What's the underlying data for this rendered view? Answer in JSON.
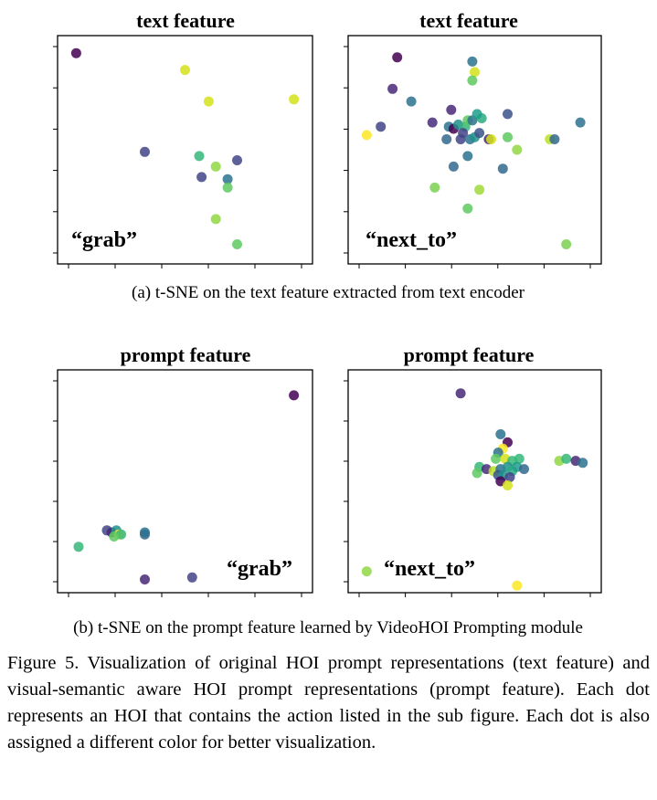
{
  "chart_data": [
    {
      "type": "scatter",
      "id": "text-grab",
      "title": "text feature",
      "label": "“grab”",
      "xlim": [
        0,
        100
      ],
      "ylim": [
        0,
        100
      ],
      "points": [
        {
          "x": 4,
          "y": 96,
          "c": "#440154"
        },
        {
          "x": 50,
          "y": 88,
          "c": "#d5e21a"
        },
        {
          "x": 60,
          "y": 73,
          "c": "#d5e21a"
        },
        {
          "x": 96,
          "y": 74,
          "c": "#d5e21a"
        },
        {
          "x": 33,
          "y": 49,
          "c": "#414487"
        },
        {
          "x": 56,
          "y": 47,
          "c": "#35b779"
        },
        {
          "x": 63,
          "y": 42,
          "c": "#90d743"
        },
        {
          "x": 72,
          "y": 45,
          "c": "#414487"
        },
        {
          "x": 57,
          "y": 37,
          "c": "#414487"
        },
        {
          "x": 68,
          "y": 36,
          "c": "#2c728e"
        },
        {
          "x": 68,
          "y": 32,
          "c": "#5ec962"
        },
        {
          "x": 63,
          "y": 17,
          "c": "#90d743"
        },
        {
          "x": 72,
          "y": 5,
          "c": "#5ec962"
        }
      ]
    },
    {
      "type": "scatter",
      "id": "text-next-to",
      "title": "text feature",
      "label": "“next_to”",
      "xlim": [
        0,
        100
      ],
      "ylim": [
        0,
        100
      ],
      "points": [
        {
          "x": 17,
          "y": 94,
          "c": "#440154"
        },
        {
          "x": 15,
          "y": 79,
          "c": "#482878"
        },
        {
          "x": 49,
          "y": 92,
          "c": "#2c728e"
        },
        {
          "x": 50,
          "y": 87,
          "c": "#d5e21a"
        },
        {
          "x": 49,
          "y": 83,
          "c": "#5ec962"
        },
        {
          "x": 23,
          "y": 73,
          "c": "#2c728e"
        },
        {
          "x": 40,
          "y": 69,
          "c": "#482878"
        },
        {
          "x": 10,
          "y": 61,
          "c": "#414487"
        },
        {
          "x": 32,
          "y": 63,
          "c": "#472c7a"
        },
        {
          "x": 39,
          "y": 61,
          "c": "#2c728e"
        },
        {
          "x": 41,
          "y": 60,
          "c": "#440154"
        },
        {
          "x": 43,
          "y": 62,
          "c": "#21918c"
        },
        {
          "x": 46,
          "y": 61,
          "c": "#35b779"
        },
        {
          "x": 47,
          "y": 64,
          "c": "#5ec962"
        },
        {
          "x": 49,
          "y": 64,
          "c": "#2c728e"
        },
        {
          "x": 53,
          "y": 65,
          "c": "#28ae80"
        },
        {
          "x": 51,
          "y": 67,
          "c": "#1f9e89"
        },
        {
          "x": 64,
          "y": 67,
          "c": "#3b528b"
        },
        {
          "x": 45,
          "y": 58,
          "c": "#414487"
        },
        {
          "x": 44,
          "y": 55,
          "c": "#414487"
        },
        {
          "x": 38,
          "y": 55,
          "c": "#31688e"
        },
        {
          "x": 48,
          "y": 55,
          "c": "#2c728e"
        },
        {
          "x": 50,
          "y": 56,
          "c": "#21918c"
        },
        {
          "x": 52,
          "y": 58,
          "c": "#3b528b"
        },
        {
          "x": 56,
          "y": 55,
          "c": "#482878"
        },
        {
          "x": 57,
          "y": 55,
          "c": "#d5e21a"
        },
        {
          "x": 64,
          "y": 56,
          "c": "#5ec962"
        },
        {
          "x": 4,
          "y": 57,
          "c": "#fde725"
        },
        {
          "x": 47,
          "y": 47,
          "c": "#2c728e"
        },
        {
          "x": 68,
          "y": 50,
          "c": "#90d743"
        },
        {
          "x": 41,
          "y": 42,
          "c": "#31688e"
        },
        {
          "x": 62,
          "y": 41,
          "c": "#31688e"
        },
        {
          "x": 82,
          "y": 55,
          "c": "#bddf26"
        },
        {
          "x": 84,
          "y": 55,
          "c": "#31688e"
        },
        {
          "x": 95,
          "y": 63,
          "c": "#2c728e"
        },
        {
          "x": 33,
          "y": 32,
          "c": "#7ad151"
        },
        {
          "x": 52,
          "y": 31,
          "c": "#a0da39"
        },
        {
          "x": 47,
          "y": 22,
          "c": "#5ec962"
        },
        {
          "x": 89,
          "y": 5,
          "c": "#7ad151"
        }
      ]
    },
    {
      "type": "scatter",
      "id": "prompt-grab",
      "title": "prompt feature",
      "label": "“grab”",
      "xlim": [
        0,
        100
      ],
      "ylim": [
        0,
        100
      ],
      "points": [
        {
          "x": 96,
          "y": 92,
          "c": "#440154"
        },
        {
          "x": 17,
          "y": 26,
          "c": "#414487"
        },
        {
          "x": 19,
          "y": 25,
          "c": "#482878"
        },
        {
          "x": 21,
          "y": 26,
          "c": "#21918c"
        },
        {
          "x": 22,
          "y": 24,
          "c": "#fde725"
        },
        {
          "x": 23,
          "y": 24,
          "c": "#35b779"
        },
        {
          "x": 20,
          "y": 23,
          "c": "#5ec962"
        },
        {
          "x": 33,
          "y": 24,
          "c": "#31688e"
        },
        {
          "x": 33,
          "y": 25,
          "c": "#2c728e"
        },
        {
          "x": 5,
          "y": 18,
          "c": "#35b779"
        },
        {
          "x": 33,
          "y": 2,
          "c": "#482878"
        },
        {
          "x": 53,
          "y": 3,
          "c": "#414487"
        }
      ]
    },
    {
      "type": "scatter",
      "id": "prompt-next-to",
      "title": "prompt feature",
      "label": "“next_to”",
      "xlim": [
        0,
        100
      ],
      "ylim": [
        0,
        100
      ],
      "points": [
        {
          "x": 44,
          "y": 93,
          "c": "#482878"
        },
        {
          "x": 61,
          "y": 73,
          "c": "#2c728e"
        },
        {
          "x": 64,
          "y": 69,
          "c": "#440154"
        },
        {
          "x": 62,
          "y": 66,
          "c": "#fde725"
        },
        {
          "x": 60,
          "y": 64,
          "c": "#2c728e"
        },
        {
          "x": 59,
          "y": 61,
          "c": "#5ec962"
        },
        {
          "x": 63,
          "y": 61,
          "c": "#d5e21a"
        },
        {
          "x": 66,
          "y": 60,
          "c": "#35b779"
        },
        {
          "x": 69,
          "y": 61,
          "c": "#35b779"
        },
        {
          "x": 52,
          "y": 57,
          "c": "#35b779"
        },
        {
          "x": 55,
          "y": 56,
          "c": "#472c7a"
        },
        {
          "x": 58,
          "y": 55,
          "c": "#bddf26"
        },
        {
          "x": 61,
          "y": 56,
          "c": "#2c728e"
        },
        {
          "x": 64,
          "y": 57,
          "c": "#21918c"
        },
        {
          "x": 66,
          "y": 55,
          "c": "#28ae80"
        },
        {
          "x": 68,
          "y": 57,
          "c": "#1f9e89"
        },
        {
          "x": 71,
          "y": 56,
          "c": "#31688e"
        },
        {
          "x": 51,
          "y": 54,
          "c": "#5ec962"
        },
        {
          "x": 60,
          "y": 53,
          "c": "#3b528b"
        },
        {
          "x": 62,
          "y": 53,
          "c": "#21918c"
        },
        {
          "x": 65,
          "y": 52,
          "c": "#414487"
        },
        {
          "x": 61,
          "y": 50,
          "c": "#440154"
        },
        {
          "x": 64,
          "y": 48,
          "c": "#d5e21a"
        },
        {
          "x": 86,
          "y": 60,
          "c": "#90d743"
        },
        {
          "x": 89,
          "y": 61,
          "c": "#35b779"
        },
        {
          "x": 93,
          "y": 60,
          "c": "#482878"
        },
        {
          "x": 96,
          "y": 59,
          "c": "#2c728e"
        },
        {
          "x": 4,
          "y": 6,
          "c": "#90d743"
        },
        {
          "x": 68,
          "y": -1,
          "c": "#fde725"
        }
      ]
    }
  ],
  "subcaptions": {
    "a": "(a) t-SNE on the text feature extracted from text encoder",
    "b": "(b) t-SNE on the prompt feature learned by VideoHOI Prompting module"
  },
  "caption": {
    "figure_label": "Figure 5.",
    "text": "Visualization of original HOI prompt representations (text feature) and visual-semantic aware HOI prompt representations (prompt feature). Each dot represents an HOI that contains the action listed in the sub figure. Each dot is also assigned a different color for better visualization."
  }
}
